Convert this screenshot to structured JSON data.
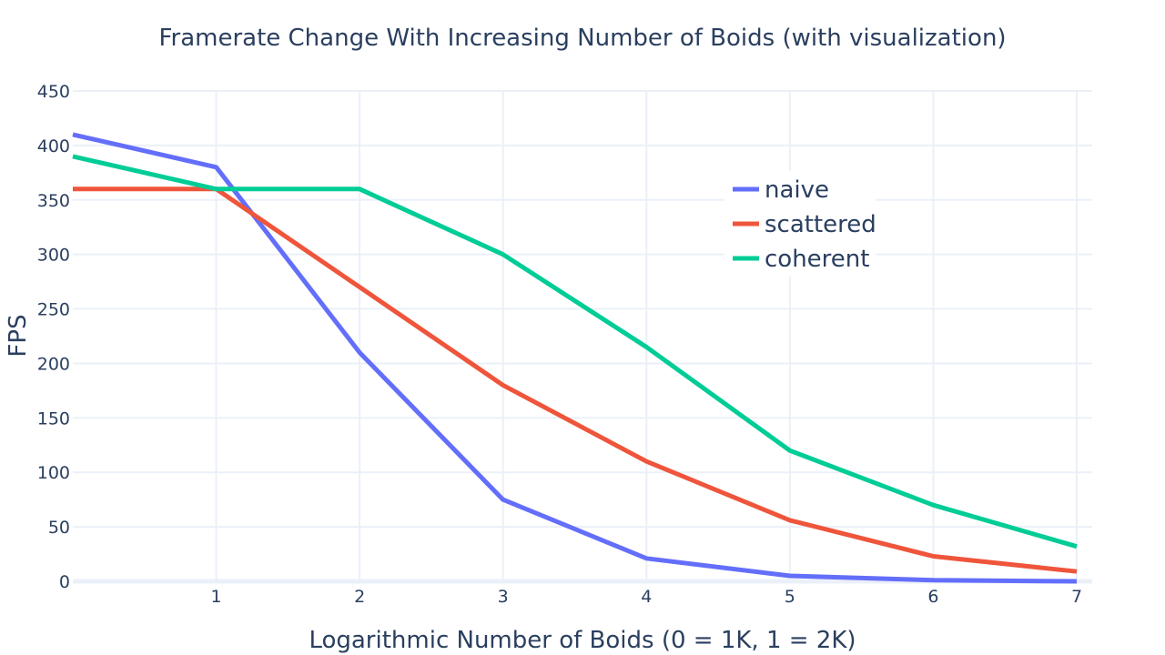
{
  "chart_data": {
    "type": "line",
    "title": "Framerate Change With Increasing Number of Boids (with visualization)",
    "xlabel": "Logarithmic Number of Boids (0 = 1K, 1 = 2K)",
    "ylabel": "FPS",
    "x": [
      0,
      1,
      2,
      3,
      4,
      5,
      6,
      7
    ],
    "xlim": [
      0,
      7
    ],
    "ylim": [
      0,
      450
    ],
    "x_ticks": [
      1,
      2,
      3,
      4,
      5,
      6,
      7
    ],
    "y_ticks": [
      0,
      50,
      100,
      150,
      200,
      250,
      300,
      350,
      400,
      450
    ],
    "grid": true,
    "legend_position": "top-right",
    "series": [
      {
        "name": "naive",
        "color": "#636efa",
        "values": [
          410,
          380,
          210,
          75,
          21,
          5,
          1,
          0
        ]
      },
      {
        "name": "scattered",
        "color": "#ef553b",
        "values": [
          360,
          360,
          270,
          180,
          110,
          56,
          23,
          9
        ]
      },
      {
        "name": "coherent",
        "color": "#00cc96",
        "values": [
          390,
          360,
          360,
          300,
          215,
          120,
          70,
          32
        ]
      }
    ]
  }
}
